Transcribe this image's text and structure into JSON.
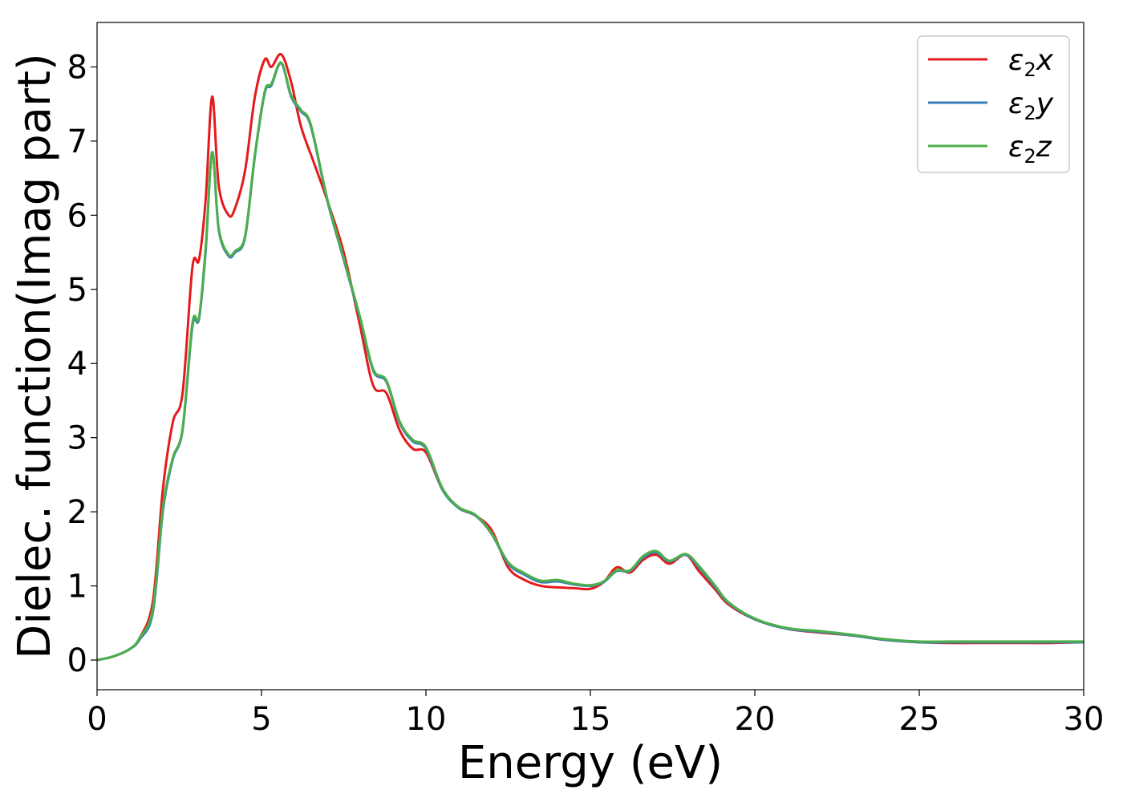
{
  "chart_data": {
    "type": "line",
    "xlabel": "Energy (eV)",
    "ylabel": "Dielec. function(Imag part)",
    "xlim": [
      0,
      30
    ],
    "ylim": [
      -0.4,
      8.6
    ],
    "xticks": [
      0,
      5,
      10,
      15,
      20,
      25,
      30
    ],
    "yticks": [
      0,
      1,
      2,
      3,
      4,
      5,
      6,
      7,
      8
    ],
    "grid": false,
    "legend_position": "top-right",
    "series": [
      {
        "name": "ε2x",
        "legend": {
          "base": "ε",
          "sub": "2",
          "var": "x"
        },
        "color": "#e41a1c",
        "x": [
          0,
          0.5,
          1.0,
          1.3,
          1.7,
          2.0,
          2.3,
          2.6,
          2.9,
          3.1,
          3.3,
          3.5,
          3.7,
          4.0,
          4.2,
          4.5,
          4.8,
          5.1,
          5.3,
          5.6,
          5.9,
          6.2,
          6.6,
          7.0,
          7.5,
          8.0,
          8.4,
          8.8,
          9.2,
          9.6,
          10.0,
          10.5,
          11.0,
          11.5,
          12.0,
          12.5,
          13.0,
          13.5,
          14.0,
          14.5,
          15.0,
          15.4,
          15.8,
          16.2,
          16.6,
          17.0,
          17.4,
          17.9,
          18.3,
          18.8,
          19.2,
          20.0,
          21.0,
          22.0,
          23.0,
          24.0,
          25.0,
          26.0,
          27.0,
          28.0,
          29.0,
          30.0
        ],
        "y": [
          0.0,
          0.05,
          0.15,
          0.3,
          0.8,
          2.3,
          3.2,
          3.6,
          5.3,
          5.4,
          6.2,
          7.6,
          6.4,
          6.0,
          6.1,
          6.6,
          7.6,
          8.1,
          8.0,
          8.17,
          7.8,
          7.2,
          6.7,
          6.2,
          5.5,
          4.5,
          3.7,
          3.6,
          3.1,
          2.85,
          2.8,
          2.3,
          2.05,
          1.95,
          1.75,
          1.25,
          1.08,
          1.0,
          0.98,
          0.97,
          0.96,
          1.05,
          1.25,
          1.18,
          1.35,
          1.42,
          1.3,
          1.42,
          1.2,
          0.95,
          0.75,
          0.55,
          0.42,
          0.37,
          0.33,
          0.27,
          0.24,
          0.23,
          0.23,
          0.23,
          0.23,
          0.24
        ]
      },
      {
        "name": "ε2y",
        "legend": {
          "base": "ε",
          "sub": "2",
          "var": "y"
        },
        "color": "#377eb8",
        "x": [
          0,
          0.5,
          1.0,
          1.3,
          1.7,
          2.0,
          2.3,
          2.6,
          2.9,
          3.1,
          3.3,
          3.5,
          3.7,
          4.0,
          4.2,
          4.5,
          4.8,
          5.1,
          5.3,
          5.6,
          5.9,
          6.2,
          6.5,
          7.0,
          7.5,
          8.0,
          8.4,
          8.8,
          9.2,
          9.6,
          10.0,
          10.5,
          11.0,
          11.5,
          12.0,
          12.5,
          13.0,
          13.5,
          14.0,
          14.5,
          15.0,
          15.4,
          15.8,
          16.2,
          16.6,
          17.0,
          17.4,
          17.9,
          18.3,
          18.8,
          19.2,
          20.0,
          21.0,
          22.0,
          23.0,
          24.0,
          25.0,
          26.0,
          27.0,
          28.0,
          29.0,
          30.0
        ],
        "y": [
          0.0,
          0.05,
          0.15,
          0.28,
          0.65,
          2.0,
          2.7,
          3.1,
          4.5,
          4.6,
          5.5,
          6.85,
          5.8,
          5.45,
          5.5,
          5.7,
          6.8,
          7.65,
          7.75,
          8.05,
          7.6,
          7.4,
          7.2,
          6.2,
          5.4,
          4.6,
          3.9,
          3.75,
          3.2,
          2.95,
          2.85,
          2.3,
          2.05,
          1.95,
          1.7,
          1.3,
          1.15,
          1.05,
          1.06,
          1.02,
          1.0,
          1.05,
          1.2,
          1.2,
          1.38,
          1.45,
          1.33,
          1.42,
          1.25,
          0.98,
          0.77,
          0.55,
          0.42,
          0.38,
          0.33,
          0.27,
          0.24,
          0.24,
          0.24,
          0.24,
          0.24,
          0.24
        ]
      },
      {
        "name": "ε2z",
        "legend": {
          "base": "ε",
          "sub": "2",
          "var": "z"
        },
        "color": "#4daf4a",
        "x": [
          0,
          0.5,
          1.0,
          1.3,
          1.7,
          2.0,
          2.3,
          2.6,
          2.9,
          3.1,
          3.3,
          3.5,
          3.7,
          4.0,
          4.2,
          4.5,
          4.8,
          5.1,
          5.3,
          5.6,
          5.9,
          6.2,
          6.5,
          7.0,
          7.5,
          8.0,
          8.4,
          8.8,
          9.2,
          9.6,
          10.0,
          10.5,
          11.0,
          11.5,
          12.0,
          12.5,
          13.0,
          13.5,
          14.0,
          14.5,
          15.0,
          15.4,
          15.8,
          16.2,
          16.6,
          17.0,
          17.4,
          17.9,
          18.3,
          18.8,
          19.2,
          20.0,
          21.0,
          22.0,
          23.0,
          24.0,
          25.0,
          26.0,
          27.0,
          28.0,
          29.0,
          30.0
        ],
        "y": [
          0.0,
          0.05,
          0.15,
          0.3,
          0.7,
          2.05,
          2.72,
          3.12,
          4.55,
          4.62,
          5.55,
          6.85,
          5.82,
          5.47,
          5.52,
          5.72,
          6.82,
          7.67,
          7.77,
          8.06,
          7.62,
          7.42,
          7.22,
          6.22,
          5.42,
          4.62,
          3.92,
          3.77,
          3.22,
          2.97,
          2.87,
          2.32,
          2.06,
          1.96,
          1.71,
          1.32,
          1.17,
          1.07,
          1.08,
          1.03,
          1.01,
          1.06,
          1.21,
          1.21,
          1.4,
          1.47,
          1.34,
          1.43,
          1.27,
          1.0,
          0.78,
          0.56,
          0.43,
          0.39,
          0.34,
          0.28,
          0.25,
          0.25,
          0.25,
          0.25,
          0.25,
          0.25
        ]
      }
    ]
  }
}
